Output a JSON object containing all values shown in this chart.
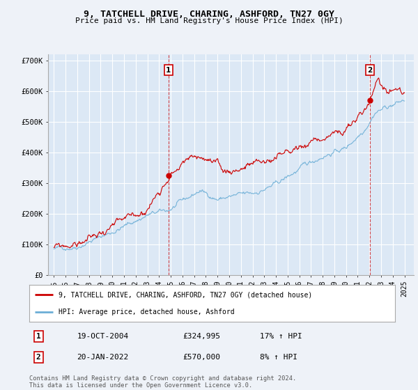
{
  "title": "9, TATCHELL DRIVE, CHARING, ASHFORD, TN27 0GY",
  "subtitle": "Price paid vs. HM Land Registry's House Price Index (HPI)",
  "background_color": "#eef2f8",
  "plot_bg_color": "#dce8f5",
  "grid_color": "#c8d8ec",
  "sale1_x": 2004.8,
  "sale1_y": 324995,
  "sale2_x": 2022.05,
  "sale2_y": 570000,
  "legend_line1": "9, TATCHELL DRIVE, CHARING, ASHFORD, TN27 0GY (detached house)",
  "legend_line2": "HPI: Average price, detached house, Ashford",
  "footer": "Contains HM Land Registry data © Crown copyright and database right 2024.\nThis data is licensed under the Open Government Licence v3.0.",
  "table": [
    {
      "num": "1",
      "date": "19-OCT-2004",
      "price": "£324,995",
      "hpi": "17% ↑ HPI"
    },
    {
      "num": "2",
      "date": "20-JAN-2022",
      "price": "£570,000",
      "hpi": "8% ↑ HPI"
    }
  ],
  "ylim": [
    0,
    720000
  ],
  "yticks": [
    0,
    100000,
    200000,
    300000,
    400000,
    500000,
    600000,
    700000
  ],
  "ytick_labels": [
    "£0",
    "£100K",
    "£200K",
    "£300K",
    "£400K",
    "£500K",
    "£600K",
    "£700K"
  ],
  "xmin": 1994.5,
  "xmax": 2025.8,
  "red_line_color": "#cc0000",
  "blue_line_color": "#6baed6"
}
